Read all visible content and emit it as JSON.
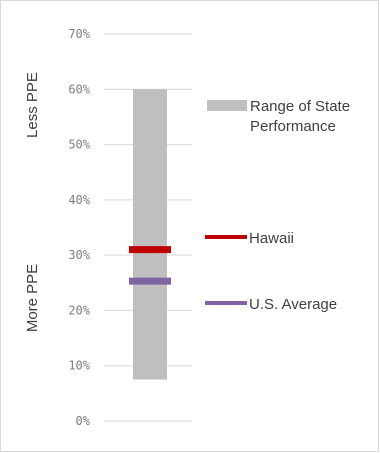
{
  "chart_data": {
    "type": "range",
    "y_ticks": [
      "0%",
      "10%",
      "20%",
      "30%",
      "40%",
      "50%",
      "60%",
      "70%"
    ],
    "y_tick_values": [
      0,
      10,
      20,
      30,
      40,
      50,
      60,
      70
    ],
    "ylim": [
      0,
      70
    ],
    "grid": true,
    "range": {
      "name": "Range of State Performance",
      "low": 7.5,
      "high": 60,
      "color": "#bfbfbf"
    },
    "markers": [
      {
        "name": "Hawaii",
        "value": 31,
        "color": "#c00000"
      },
      {
        "name": "U.S. Average",
        "value": 25.3,
        "color": "#8064a2"
      }
    ],
    "side_labels": {
      "top": "Less PPE",
      "bottom": "More PPE"
    },
    "legend": {
      "placement": "right",
      "range_label_lines": [
        "Range of State",
        "Performance"
      ],
      "hawaii_label": "Hawaii",
      "us_label": "U.S. Average"
    }
  }
}
